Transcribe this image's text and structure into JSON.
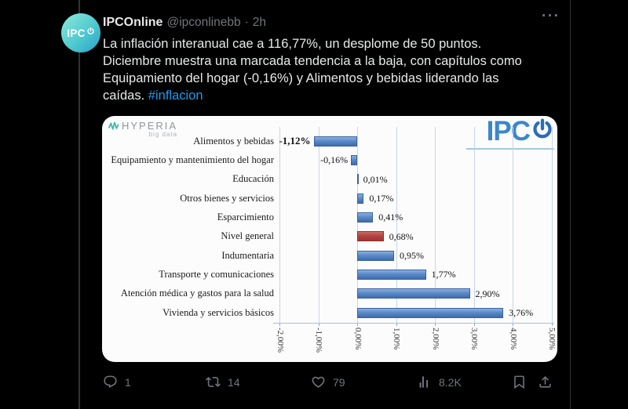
{
  "tweet": {
    "author": "IPCOnline",
    "handle": "@ipconlinebb",
    "separator": "·",
    "timestamp": "2h",
    "more_label": "···",
    "avatar_text": "IPC",
    "body": {
      "line1": "La inflación interanual cae a 116,77%, un desplome de 50 puntos.",
      "line2": "Diciembre muestra una marcada tendencia a la baja, con capítulos como",
      "line3": "Equipamiento del hogar (-0,16%) y Alimentos y bebidas liderando las",
      "line4": "caídas.",
      "hashtag": "#inflacion"
    },
    "actions": {
      "reply_count": "1",
      "repost_count": "14",
      "like_count": "79",
      "view_count": "8.2K"
    },
    "icons": {
      "avatar_logo": "power-icon",
      "more": "ellipsis-icon",
      "reply": "speech-bubble-icon",
      "repost": "retweet-icon",
      "like": "heart-icon",
      "views": "bar-chart-icon",
      "bookmark": "bookmark-icon",
      "share": "share-icon"
    }
  },
  "chart": {
    "hyperia_title": "HYPERIA",
    "hyperia_subtitle": "big data",
    "logo_text": "IPC"
  },
  "chart_data": {
    "type": "bar",
    "orientation": "horizontal",
    "categories": [
      "Alimentos y bebidas",
      "Equipamiento y mantenimiento del hogar",
      "Educación",
      "Otros bienes y servicios",
      "Esparcimiento",
      "Nivel general",
      "Indumentaria",
      "Transporte y comunicaciones",
      "Atención médica y gastos para la salud",
      "Vivienda y servicios básicos"
    ],
    "values": [
      -1.12,
      -0.16,
      0.01,
      0.17,
      0.41,
      0.68,
      0.95,
      1.77,
      2.9,
      3.76
    ],
    "labels": [
      "-1,12%",
      "-0,16%",
      "0,01%",
      "0,17%",
      "0,41%",
      "0,68%",
      "0,95%",
      "1,77%",
      "2,90%",
      "3,76%"
    ],
    "highlight_category": "Nivel general",
    "bar_color": "#4f81bd",
    "highlight_color": "#be4b48",
    "xlim": [
      -2,
      5
    ],
    "x_ticks": [
      "-2,00%",
      "-1,00%",
      "0,00%",
      "1,00%",
      "2,00%",
      "3,00%",
      "4,00%",
      "5,00%"
    ],
    "x_tick_values": [
      -2,
      -1,
      0,
      1,
      2,
      3,
      4,
      5
    ],
    "grid": true,
    "legend": "none"
  },
  "colors": {
    "background": "#000000",
    "text_primary": "#e7e9ea",
    "text_secondary": "#71767b",
    "link_blue": "#1d9bf0",
    "divider": "#2f3336",
    "chart_background": "#fcfcfc"
  }
}
